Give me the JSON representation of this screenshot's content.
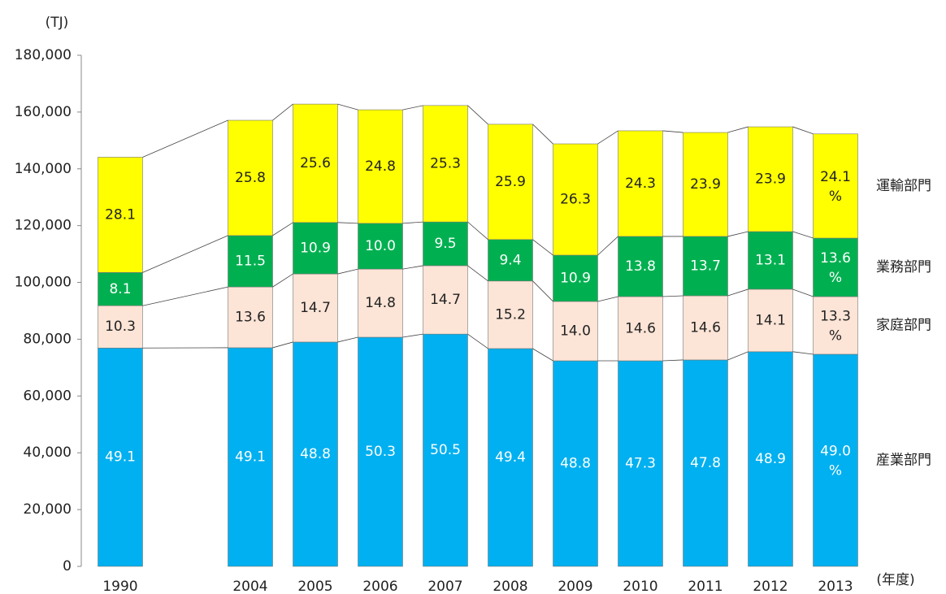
{
  "chart_data": {
    "type": "stacked_bar",
    "y_axis_label": "(TJ)",
    "x_axis_label": "(年度)",
    "categories": [
      "1990",
      null,
      "2004",
      "2005",
      "2006",
      "2007",
      "2008",
      "2009",
      "2010",
      "2011",
      "2012",
      "2013"
    ],
    "series": [
      {
        "name": "産業部門",
        "color": "#00b0f0",
        "label_color": "#ffffff",
        "values": [
          76900,
          null,
          77000,
          79000,
          80700,
          81800,
          76700,
          72400,
          72400,
          72700,
          75600,
          74700
        ],
        "share_labels": [
          "49.1",
          null,
          "49.1",
          "48.8",
          "50.3",
          "50.5",
          "49.4",
          "48.8",
          "47.3",
          "47.8",
          "48.9",
          "49.0 %"
        ]
      },
      {
        "name": "家庭部門",
        "color": "#fce4d6",
        "label_color": "#222222",
        "values": [
          14900,
          null,
          21400,
          24000,
          24000,
          24100,
          23800,
          20900,
          22600,
          22600,
          22000,
          20300
        ],
        "share_labels": [
          "10.3",
          null,
          "13.6",
          "14.7",
          "14.8",
          "14.7",
          "15.2",
          "14.0",
          "14.6",
          "14.6",
          "14.1",
          "13.3 %"
        ]
      },
      {
        "name": "業務部門",
        "color": "#00b050",
        "label_color": "#ffffff",
        "values": [
          11700,
          null,
          18100,
          18100,
          16100,
          15400,
          14600,
          16300,
          21200,
          20900,
          20300,
          20600
        ],
        "share_labels": [
          "8.1",
          null,
          "11.5",
          "10.9",
          "10.0",
          "9.5",
          "9.4",
          "10.9",
          "13.8",
          "13.7",
          "13.1",
          "13.6 %"
        ]
      },
      {
        "name": "運輸部門",
        "color": "#ffff00",
        "label_color": "#222222",
        "values": [
          40600,
          null,
          40600,
          41700,
          40000,
          41000,
          40600,
          39200,
          37200,
          36600,
          36900,
          36700
        ],
        "share_labels": [
          "28.1",
          null,
          "25.8",
          "25.6",
          "24.8",
          "25.3",
          "25.9",
          "26.3",
          "24.3",
          "23.9",
          "23.9",
          "24.1 %"
        ]
      }
    ],
    "ylim": [
      0,
      180000
    ],
    "yticks": [
      0,
      {
        "value": 20000,
        "label": "20,000"
      },
      {
        "value": 40000,
        "label": "40,000"
      },
      {
        "value": 60000,
        "label": "60,000"
      },
      {
        "value": 80000,
        "label": "80,000"
      },
      {
        "value": 100000,
        "label": "100,000"
      },
      {
        "value": 120000,
        "label": "120,000"
      },
      {
        "value": 140000,
        "label": "140,000"
      },
      {
        "value": 160000,
        "label": "160,000"
      },
      {
        "value": 180000,
        "label": "180,000"
      }
    ],
    "grid": false
  }
}
